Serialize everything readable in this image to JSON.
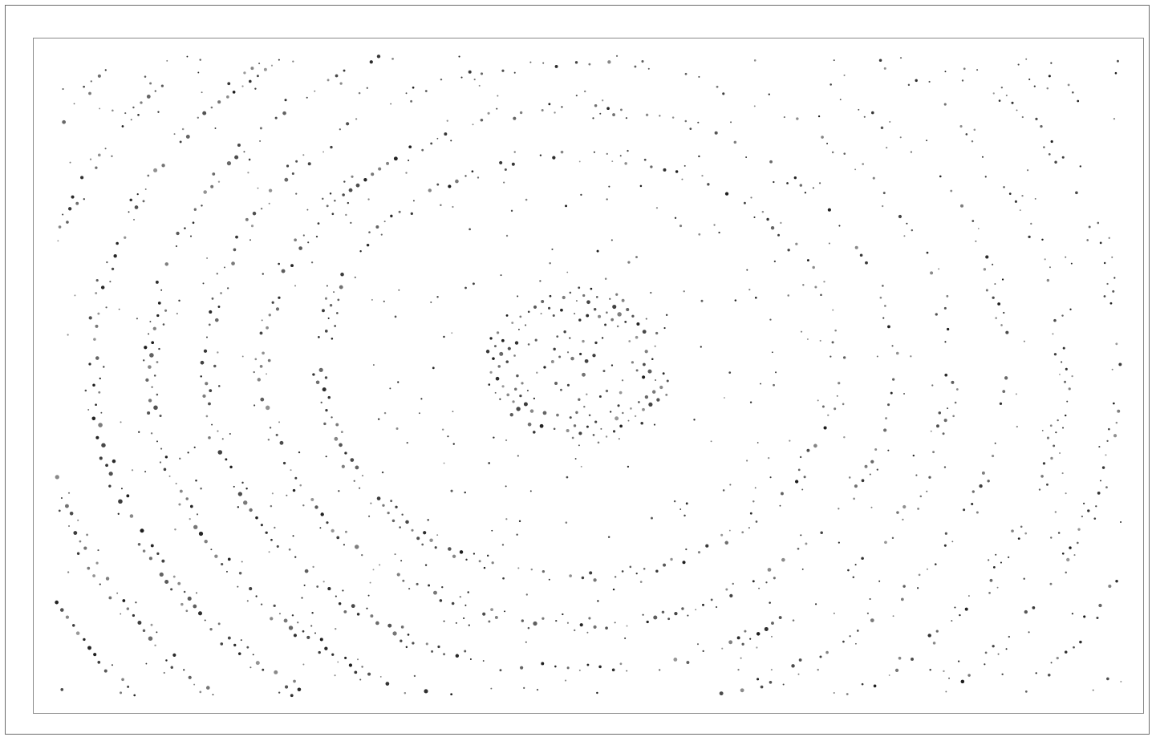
{
  "image": {
    "subject": "diffraction-dot-pattern",
    "ink_color": "#1a1a1a",
    "paper_color": "#ffffff",
    "frame_color": "#6a6a6a",
    "plot_border_color": "#8a8a8a"
  }
}
